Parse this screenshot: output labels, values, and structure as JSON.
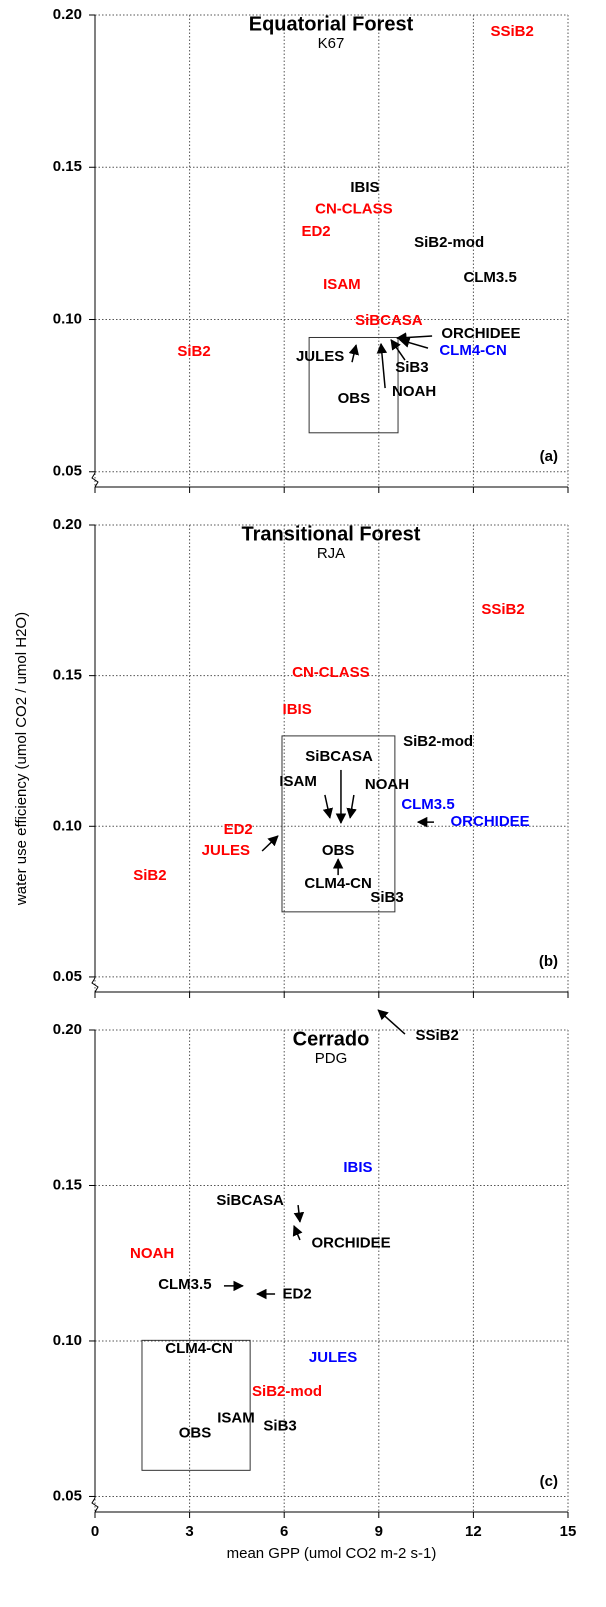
{
  "chart_data": [
    {
      "type": "scatter",
      "title": "Equatorial Forest",
      "subtitle": "K67",
      "panel": "(a)",
      "xlim": [
        0,
        15
      ],
      "xticks": [
        0,
        3,
        6,
        9,
        12,
        15
      ],
      "ylim": [
        0.045,
        0.2
      ],
      "yticks": [
        0.05,
        {
          "value": 0.1,
          "label": "0.10"
        },
        0.15,
        {
          "value": 0.2,
          "label": "0.20"
        }
      ],
      "grid": true,
      "points": [
        {
          "name": "SSiB2",
          "color": "#ff0000",
          "x": 13.23,
          "y": 0.1944
        },
        {
          "name": "IBIS",
          "color": "#000000",
          "x": 8.56,
          "y": 0.1432
        },
        {
          "name": "CN-CLASS",
          "color": "#ff0000",
          "x": 8.21,
          "y": 0.1362
        },
        {
          "name": "ED2",
          "color": "#ff0000",
          "x": 7.01,
          "y": 0.1288
        },
        {
          "name": "SiB2-mod",
          "color": "#000000",
          "x": 11.23,
          "y": 0.1251
        },
        {
          "name": "CLM3.5",
          "color": "#000000",
          "x": 12.53,
          "y": 0.1136
        },
        {
          "name": "ISAM",
          "color": "#ff0000",
          "x": 7.83,
          "y": 0.1113
        },
        {
          "name": "SiBCASA",
          "color": "#ff0000",
          "x": 9.32,
          "y": 0.0995
        },
        {
          "name": "ORCHIDEE",
          "color": "#000000",
          "x": 12.24,
          "y": 0.0952
        },
        {
          "name": "CLM4-CN",
          "color": "#0000ff",
          "x": 11.99,
          "y": 0.0896
        },
        {
          "name": "SiB2",
          "color": "#ff0000",
          "x": 3.14,
          "y": 0.0893
        },
        {
          "name": "JULES",
          "color": "#000000",
          "x": 7.14,
          "y": 0.0877
        },
        {
          "name": "SiB3",
          "color": "#000000",
          "x": 10.05,
          "y": 0.0841
        },
        {
          "name": "NOAH",
          "color": "#000000",
          "x": 10.12,
          "y": 0.0762
        },
        {
          "name": "OBS",
          "color": "#000000",
          "x": 8.21,
          "y": 0.0739
        }
      ],
      "arrows": [
        {
          "from": [
            8.15,
            0.086
          ],
          "to": [
            8.28,
            0.0916
          ]
        },
        {
          "from": [
            9.2,
            0.0775
          ],
          "to": [
            9.07,
            0.092
          ]
        },
        {
          "from": [
            9.83,
            0.0867
          ],
          "to": [
            9.39,
            0.0933
          ]
        },
        {
          "from": [
            10.69,
            0.0946
          ],
          "to": [
            9.58,
            0.0939
          ]
        },
        {
          "from": [
            10.56,
            0.0906
          ],
          "to": [
            9.67,
            0.0933
          ]
        }
      ],
      "obs_box": {
        "x": [
          6.79,
          9.61
        ],
        "y": [
          0.0628,
          0.0941
        ]
      }
    },
    {
      "type": "scatter",
      "title": "Transitional Forest",
      "subtitle": "RJA",
      "panel": "(b)",
      "ylabel": "water use efficiency (umol CO2 / umol H2O)",
      "xlim": [
        0,
        15
      ],
      "xticks": [
        0,
        3,
        6,
        9,
        12,
        15
      ],
      "ylim": [
        0.045,
        0.2
      ],
      "yticks": [
        0.05,
        {
          "value": 0.1,
          "label": "0.10"
        },
        0.15,
        {
          "value": 0.2,
          "label": "0.20"
        }
      ],
      "grid": true,
      "points": [
        {
          "name": "SSiB2",
          "color": "#ff0000",
          "x": 12.94,
          "y": 0.1718
        },
        {
          "name": "CN-CLASS",
          "color": "#ff0000",
          "x": 7.48,
          "y": 0.1509
        },
        {
          "name": "IBIS",
          "color": "#ff0000",
          "x": 6.41,
          "y": 0.1386
        },
        {
          "name": "SiB2-mod",
          "color": "#000000",
          "x": 10.88,
          "y": 0.128
        },
        {
          "name": "SiBCASA",
          "color": "#000000",
          "x": 7.74,
          "y": 0.123
        },
        {
          "name": "ISAM",
          "color": "#000000",
          "x": 6.44,
          "y": 0.1147
        },
        {
          "name": "NOAH",
          "color": "#000000",
          "x": 9.26,
          "y": 0.1137
        },
        {
          "name": "CLM3.5",
          "color": "#0000ff",
          "x": 10.56,
          "y": 0.1071
        },
        {
          "name": "ORCHIDEE",
          "color": "#0000ff",
          "x": 12.53,
          "y": 0.1014
        },
        {
          "name": "ED2",
          "color": "#ff0000",
          "x": 4.54,
          "y": 0.0988
        },
        {
          "name": "JULES",
          "color": "#ff0000",
          "x": 4.15,
          "y": 0.0918
        },
        {
          "name": "SiB2",
          "color": "#ff0000",
          "x": 1.74,
          "y": 0.0835
        },
        {
          "name": "OBS",
          "color": "#000000",
          "x": 7.71,
          "y": 0.0918
        },
        {
          "name": "CLM4-CN",
          "color": "#000000",
          "x": 7.71,
          "y": 0.0808
        },
        {
          "name": "SiB3",
          "color": "#000000",
          "x": 9.26,
          "y": 0.0762
        }
      ],
      "arrows": [
        {
          "from": [
            7.29,
            0.1104
          ],
          "to": [
            7.45,
            0.1028
          ]
        },
        {
          "from": [
            7.8,
            0.1187
          ],
          "to": [
            7.8,
            0.1011
          ]
        },
        {
          "from": [
            8.21,
            0.1104
          ],
          "to": [
            8.09,
            0.1028
          ]
        },
        {
          "from": [
            5.3,
            0.0918
          ],
          "to": [
            5.8,
            0.0968
          ]
        },
        {
          "from": [
            10.75,
            0.1014
          ],
          "to": [
            10.24,
            0.1014
          ]
        },
        {
          "from": [
            7.71,
            0.0838
          ],
          "to": [
            7.71,
            0.0891
          ]
        }
      ],
      "obs_box": {
        "x": [
          5.93,
          9.51
        ],
        "y": [
          0.0716,
          0.13
        ]
      }
    },
    {
      "type": "scatter",
      "title": "Cerrado",
      "subtitle": "PDG",
      "panel": "(c)",
      "xlabel": "mean GPP (umol CO2 m-2 s-1)",
      "xlim": [
        0,
        15
      ],
      "xticks": [
        0,
        3,
        6,
        9,
        12,
        15
      ],
      "ylim": [
        0.045,
        0.2
      ],
      "yticks": [
        0.05,
        {
          "value": 0.1,
          "label": "0.10"
        },
        0.15,
        {
          "value": 0.2,
          "label": "0.20"
        }
      ],
      "grid": true,
      "points": [
        {
          "name": "SSiB2",
          "color": "#000000",
          "x": 10.85,
          "y": 0.1981
        },
        {
          "name": "IBIS",
          "color": "#0000ff",
          "x": 8.34,
          "y": 0.1556
        },
        {
          "name": "SiBCASA",
          "color": "#000000",
          "x": 4.92,
          "y": 0.145
        },
        {
          "name": "ORCHIDEE",
          "color": "#000000",
          "x": 8.12,
          "y": 0.1314
        },
        {
          "name": "NOAH",
          "color": "#ff0000",
          "x": 1.81,
          "y": 0.128
        },
        {
          "name": "CLM3.5",
          "color": "#000000",
          "x": 2.85,
          "y": 0.118
        },
        {
          "name": "ED2",
          "color": "#000000",
          "x": 6.41,
          "y": 0.115
        },
        {
          "name": "CLM4-CN",
          "color": "#000000",
          "x": 3.3,
          "y": 0.0974
        },
        {
          "name": "JULES",
          "color": "#0000ff",
          "x": 7.55,
          "y": 0.0945
        },
        {
          "name": "SiB2-mod",
          "color": "#ff0000",
          "x": 6.09,
          "y": 0.0835
        },
        {
          "name": "ISAM",
          "color": "#000000",
          "x": 4.47,
          "y": 0.0751
        },
        {
          "name": "SiB3",
          "color": "#000000",
          "x": 5.87,
          "y": 0.0725
        },
        {
          "name": "OBS",
          "color": "#000000",
          "x": 3.17,
          "y": 0.0703
        }
      ],
      "arrows": [
        {
          "from": [
            9.83,
            0.1987
          ],
          "to": [
            8.98,
            0.2064
          ]
        },
        {
          "from": [
            6.44,
            0.1437
          ],
          "to": [
            6.5,
            0.1383
          ]
        },
        {
          "from": [
            6.5,
            0.1325
          ],
          "to": [
            6.31,
            0.137
          ]
        },
        {
          "from": [
            4.09,
            0.1177
          ],
          "to": [
            4.69,
            0.1177
          ]
        },
        {
          "from": [
            5.71,
            0.1151
          ],
          "to": [
            5.14,
            0.1151
          ]
        }
      ],
      "obs_box": {
        "x": [
          1.49,
          4.92
        ],
        "y": [
          0.0584,
          0.1002
        ]
      }
    }
  ]
}
